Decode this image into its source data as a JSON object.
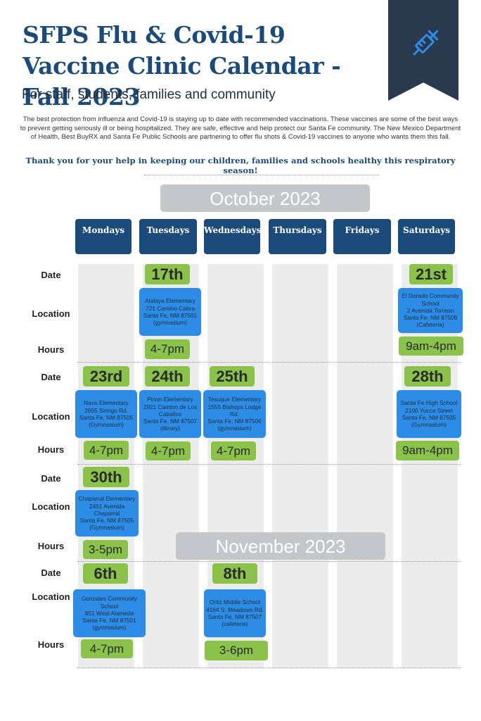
{
  "header": {
    "title": "SFPS Flu & Covid-19 Vaccine Clinic Calendar -Fall 2023",
    "subtitle": "For staff, students, families and community",
    "intro": "The best protection from influenza and Covid-19 is staying up to date with recommended vaccinations. These vaccines are some of the best ways to prevent getting seriously ill or being hospitalized. They are safe, effective and help protect our Santa Fe community. The New Mexico Department of Health, Best BuyRX and Santa Fe Public Schools are partnering to offer flu shots & Covid-19 vaccines to anyone who wants them this fall.",
    "thanks": "Thank you for your help in keeping our children, families and schools healthy this respiratory season!",
    "icon": "syringe-icon",
    "banner_color": "#2a3a4e",
    "title_color": "#1a4b7a"
  },
  "months": {
    "october": "October 2023",
    "november": "November 2023"
  },
  "days": [
    "Mondays",
    "Tuesdays",
    "Wednesdays",
    "Thursdays",
    "Fridays",
    "Saturdays"
  ],
  "labels": {
    "date": "Date",
    "location": "Location",
    "hours": "Hours"
  },
  "colors": {
    "date_green": "#8bc34a",
    "location_blue": "#2d8de6",
    "header_navy": "#1a4b7a",
    "month_gray": "#c4c7ca"
  },
  "clinics": [
    {
      "date": "17th",
      "location": [
        "Atalaya Elementary",
        "721 Camino Cabra",
        "Santa Fe, NM 87501",
        "(gymnasium)"
      ],
      "hours": "4-7pm"
    },
    {
      "date": "21st",
      "location": [
        "El Dorado Community",
        "School",
        "2 Avenida Torreon",
        "Santa Fe, NM 87508",
        "(Cafeteria)"
      ],
      "hours": "9am-4pm"
    },
    {
      "date": "23rd",
      "location": [
        "Nava Elementary",
        "2655 Siringo Rd.",
        "Santa Fe, NM 87505",
        "(Gymnasium)"
      ],
      "hours": "4-7pm"
    },
    {
      "date": "24th",
      "location": [
        "Pinon Elementary",
        "2921 Camino de Los",
        "Caballos",
        "Santa Fe, NM 87507",
        "(library)"
      ],
      "hours": "4-7pm"
    },
    {
      "date": "25th",
      "location": [
        "Tesuque Elementary",
        "1555 Bishops Lodge Rd.",
        "Santa Fe, NM 87506",
        "(gymnasium)"
      ],
      "hours": "4-7pm"
    },
    {
      "date": "28th",
      "location": [
        "Santa Fe High School",
        "2100 Yucca Street",
        "Santa Fe, NM 87505",
        "(Gymnasium)"
      ],
      "hours": "9am-4pm"
    },
    {
      "date": "30th",
      "location": [
        "Chaparral Elementary",
        "2451 Avenida Chaparral",
        "Santa Fe, NM 87505",
        "(Gymnasium)"
      ],
      "hours": "3-5pm"
    },
    {
      "date": "6th",
      "location": [
        "Gonzales Community School",
        "851 West Alameda",
        "Santa Fe, NM 87501",
        "(gymnasium)"
      ],
      "hours": "4-7pm"
    },
    {
      "date": "8th",
      "location": [
        "Ortiz Middle School",
        "4164 S. Meadows Rd.",
        "Santa Fe, NM 87507",
        "(cafeteria)"
      ],
      "hours": "3-6pm"
    }
  ]
}
